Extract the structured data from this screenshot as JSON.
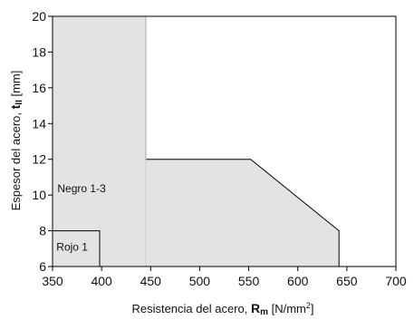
{
  "chart_data": {
    "type": "area",
    "title": "",
    "xlabel": {
      "text": "Resistencia del acero, ",
      "symbol": "R",
      "subscript": "m",
      "unit_prefix": " [N/mm",
      "unit_sup": "2",
      "unit_suffix": "]"
    },
    "ylabel": {
      "text": "Espesor del acero, ",
      "symbol": "t",
      "subscript": "II",
      "unit": " [mm]"
    },
    "xlim": [
      350,
      700
    ],
    "ylim": [
      6,
      20
    ],
    "x_ticks": [
      350,
      400,
      450,
      500,
      550,
      600,
      650,
      700
    ],
    "y_ticks": [
      6,
      8,
      10,
      12,
      14,
      16,
      18,
      20
    ],
    "grid": false,
    "regions": [
      {
        "name": "Negro 1-3",
        "label_at": [
          355,
          10.15
        ],
        "fill": "#e3e3e3",
        "points": [
          [
            350,
            6
          ],
          [
            350,
            20
          ],
          [
            445,
            20
          ],
          [
            445,
            12
          ],
          [
            552,
            12
          ],
          [
            642,
            8
          ],
          [
            642,
            6
          ]
        ]
      },
      {
        "name": "Rojo 1",
        "label_at": [
          354,
          6.9
        ],
        "fill": "none",
        "points": [
          [
            350,
            6
          ],
          [
            350,
            8
          ],
          [
            398,
            8
          ],
          [
            398,
            6
          ]
        ]
      }
    ],
    "vertical_rules": [
      445
    ]
  }
}
